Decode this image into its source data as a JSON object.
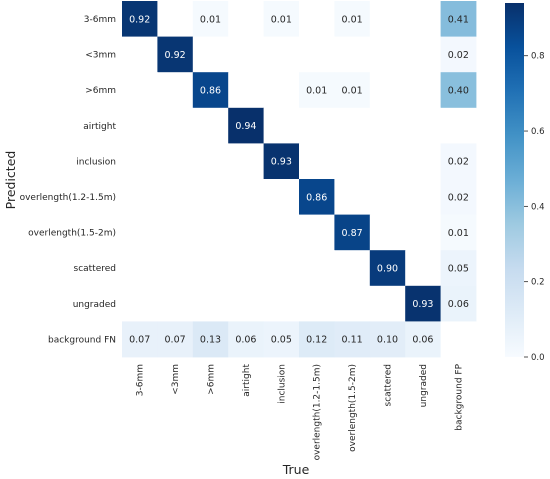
{
  "chart_data": {
    "type": "heatmap",
    "xlabel": "True",
    "ylabel": "Predicted",
    "x_categories": [
      "3-6mm",
      "<3mm",
      ">6mm",
      "airtight",
      "inclusion",
      "overlength(1.2-1.5m)",
      "overlength(1.5-2m)",
      "scattered",
      "ungraded",
      "background FP"
    ],
    "y_categories": [
      "3-6mm",
      "<3mm",
      ">6mm",
      "airtight",
      "inclusion",
      "overlength(1.2-1.5m)",
      "overlength(1.5-2m)",
      "scattered",
      "ungraded",
      "background FN"
    ],
    "values": [
      [
        0.92,
        null,
        0.01,
        null,
        0.01,
        null,
        0.01,
        null,
        null,
        0.41
      ],
      [
        null,
        0.92,
        null,
        null,
        null,
        null,
        null,
        null,
        null,
        0.02
      ],
      [
        null,
        null,
        0.86,
        null,
        null,
        0.01,
        0.01,
        null,
        null,
        0.4
      ],
      [
        null,
        null,
        null,
        0.94,
        null,
        null,
        null,
        null,
        null,
        null
      ],
      [
        null,
        null,
        null,
        null,
        0.93,
        null,
        null,
        null,
        null,
        0.02
      ],
      [
        null,
        null,
        null,
        null,
        null,
        0.86,
        null,
        null,
        null,
        0.02
      ],
      [
        null,
        null,
        null,
        null,
        null,
        null,
        0.87,
        null,
        null,
        0.01
      ],
      [
        null,
        null,
        null,
        null,
        null,
        null,
        null,
        0.9,
        null,
        0.05
      ],
      [
        null,
        null,
        null,
        null,
        null,
        null,
        null,
        null,
        0.93,
        0.06
      ],
      [
        0.07,
        0.07,
        0.13,
        0.06,
        0.05,
        0.12,
        0.11,
        0.1,
        0.06,
        null
      ]
    ],
    "colormap": "Blues",
    "colorbar": {
      "min": 0.0,
      "max": 0.94,
      "ticks": [
        "0.0",
        "0.2",
        "0.4",
        "0.6",
        "0.8"
      ]
    },
    "colors": {
      "low": "#f7fbff",
      "high": "#08306b",
      "text_dark": "#262626",
      "text_light": "#ffffff"
    }
  }
}
